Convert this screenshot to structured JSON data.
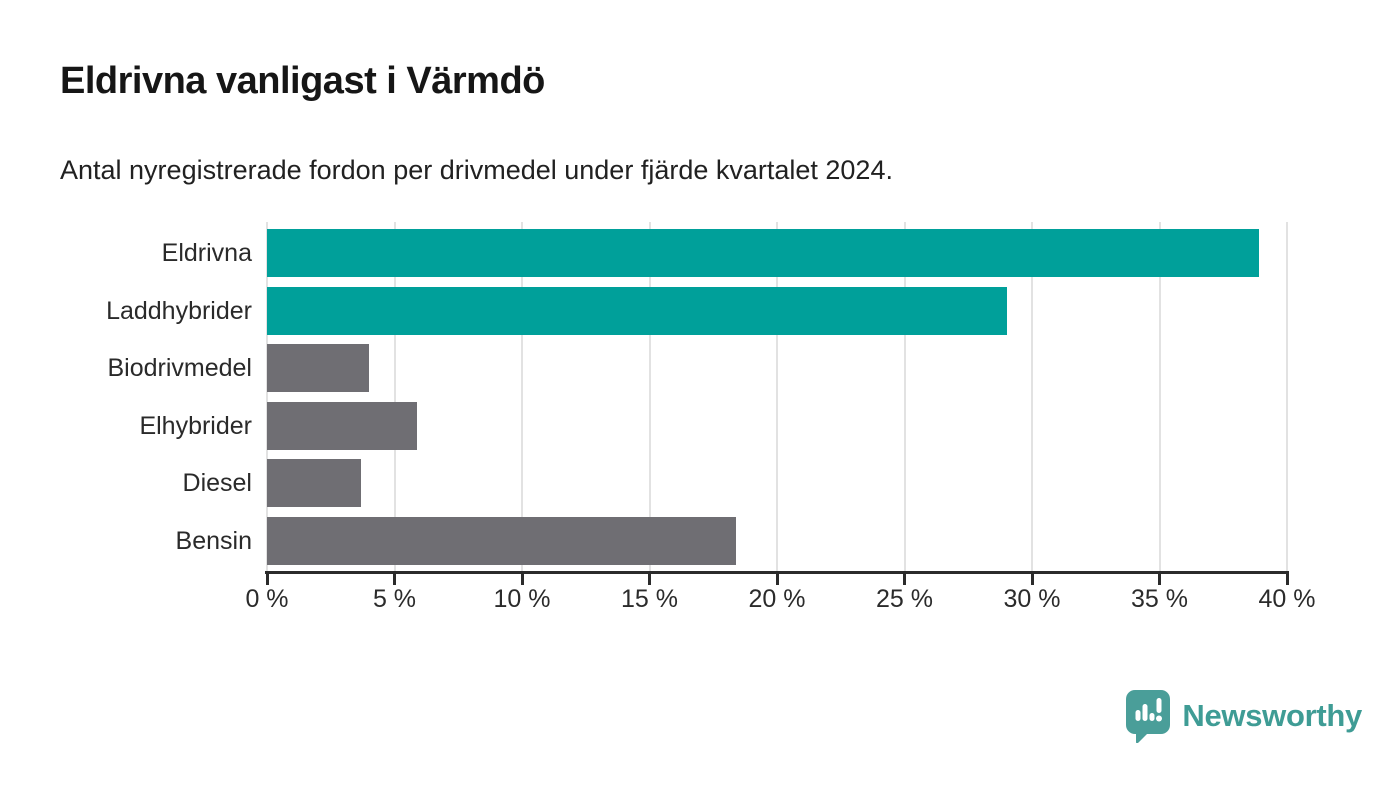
{
  "header": {
    "title": "Eldrivna vanligast i Värmdö",
    "subtitle": "Antal nyregistrerade fordon per drivmedel under fjärde kvartalet 2024."
  },
  "chart_data": {
    "type": "bar",
    "orientation": "horizontal",
    "title": "Eldrivna vanligast i Värmdö",
    "subtitle": "Antal nyregistrerade fordon per drivmedel under fjärde kvartalet 2024.",
    "categories": [
      "Eldrivna",
      "Laddhybrider",
      "Biodrivmedel",
      "Elhybrider",
      "Diesel",
      "Bensin"
    ],
    "values": [
      38.9,
      29.0,
      4.0,
      5.9,
      3.7,
      18.4
    ],
    "unit": "%",
    "bar_colors": [
      "#00a09a",
      "#00a09a",
      "#6f6e73",
      "#6f6e73",
      "#6f6e73",
      "#6f6e73"
    ],
    "xlabel": "",
    "ylabel": "",
    "xlim": [
      0,
      40
    ],
    "x_ticks": [
      0,
      5,
      10,
      15,
      20,
      25,
      30,
      35,
      40
    ],
    "x_tick_labels": [
      "0 %",
      "5 %",
      "10 %",
      "15 %",
      "20 %",
      "25 %",
      "30 %",
      "35 %",
      "40 %"
    ],
    "grid": "vertical-on",
    "legend": "none"
  },
  "colors": {
    "accent_teal": "#00a09a",
    "bar_gray": "#6f6e73",
    "axis": "#2b2b2b",
    "gridline": "#e2e2e2",
    "logo_badge": "#4a9e99",
    "logo_text": "#3f9c95"
  },
  "footer": {
    "logo_text": "Newsworthy"
  }
}
